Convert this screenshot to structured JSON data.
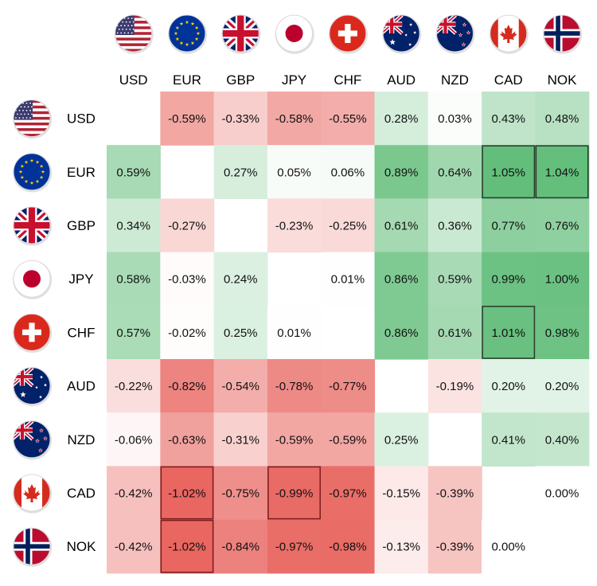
{
  "chart_data": {
    "type": "heatmap",
    "columns": [
      "USD",
      "EUR",
      "GBP",
      "JPY",
      "CHF",
      "AUD",
      "NZD",
      "CAD",
      "NOK"
    ],
    "rows": [
      "USD",
      "EUR",
      "GBP",
      "JPY",
      "CHF",
      "AUD",
      "NZD",
      "CAD",
      "NOK"
    ],
    "flag_icons": [
      "usa-flag-icon",
      "eu-flag-icon",
      "uk-flag-icon",
      "japan-flag-icon",
      "switzerland-flag-icon",
      "australia-flag-icon",
      "new-zealand-flag-icon",
      "canada-flag-icon",
      "norway-flag-icon"
    ],
    "values": [
      [
        null,
        -0.59,
        -0.33,
        -0.58,
        -0.55,
        0.28,
        0.03,
        0.43,
        0.48
      ],
      [
        0.59,
        null,
        0.27,
        0.05,
        0.06,
        0.89,
        0.64,
        1.05,
        1.04
      ],
      [
        0.34,
        -0.27,
        null,
        -0.23,
        -0.25,
        0.61,
        0.36,
        0.77,
        0.76
      ],
      [
        0.58,
        -0.03,
        0.24,
        null,
        0.01,
        0.86,
        0.59,
        0.99,
        1.0
      ],
      [
        0.57,
        -0.02,
        0.25,
        0.01,
        null,
        0.86,
        0.61,
        1.01,
        0.98
      ],
      [
        -0.22,
        -0.82,
        -0.54,
        -0.78,
        -0.77,
        null,
        -0.19,
        0.2,
        0.2
      ],
      [
        -0.06,
        -0.63,
        -0.31,
        -0.59,
        -0.59,
        0.25,
        null,
        0.41,
        0.4
      ],
      [
        -0.42,
        -1.02,
        -0.75,
        -0.99,
        -0.97,
        -0.15,
        -0.39,
        null,
        0.0
      ],
      [
        -0.42,
        -1.02,
        -0.84,
        -0.97,
        -0.98,
        -0.13,
        -0.39,
        0.0,
        null
      ]
    ],
    "labels": [
      [
        "",
        "-0.59%",
        "-0.33%",
        "-0.58%",
        "-0.55%",
        "0.28%",
        "0.03%",
        "0.43%",
        "0.48%"
      ],
      [
        "0.59%",
        "",
        "0.27%",
        "0.05%",
        "0.06%",
        "0.89%",
        "0.64%",
        "1.05%",
        "1.04%"
      ],
      [
        "0.34%",
        "-0.27%",
        "",
        "-0.23%",
        "-0.25%",
        "0.61%",
        "0.36%",
        "0.77%",
        "0.76%"
      ],
      [
        "0.58%",
        "-0.03%",
        "0.24%",
        "",
        "0.01%",
        "0.86%",
        "0.59%",
        "0.99%",
        "1.00%"
      ],
      [
        "0.57%",
        "-0.02%",
        "0.25%",
        "0.01%",
        "",
        "0.86%",
        "0.61%",
        "1.01%",
        "0.98%"
      ],
      [
        "-0.22%",
        "-0.82%",
        "-0.54%",
        "-0.78%",
        "-0.77%",
        "",
        "-0.19%",
        "0.20%",
        "0.20%"
      ],
      [
        "-0.06%",
        "-0.63%",
        "-0.31%",
        "-0.59%",
        "-0.59%",
        "0.25%",
        "",
        "0.41%",
        "0.40%"
      ],
      [
        "-0.42%",
        "-1.02%",
        "-0.75%",
        "-0.99%",
        "-0.97%",
        "-0.15%",
        "-0.39%",
        "",
        "0.00%"
      ],
      [
        "-0.42%",
        "-1.02%",
        "-0.84%",
        "-0.97%",
        "-0.98%",
        "-0.13%",
        "-0.39%",
        "0.00%",
        ""
      ]
    ],
    "highlighted": [
      [
        1,
        7
      ],
      [
        1,
        8
      ],
      [
        4,
        7
      ],
      [
        7,
        1
      ],
      [
        7,
        3
      ],
      [
        8,
        1
      ]
    ],
    "colors": {
      "positive": "#63be7b",
      "negative": "#e8625c",
      "neutral": "#ffffff",
      "positive_border": "#2c3a2c",
      "negative_border": "#7a1c1c"
    }
  }
}
